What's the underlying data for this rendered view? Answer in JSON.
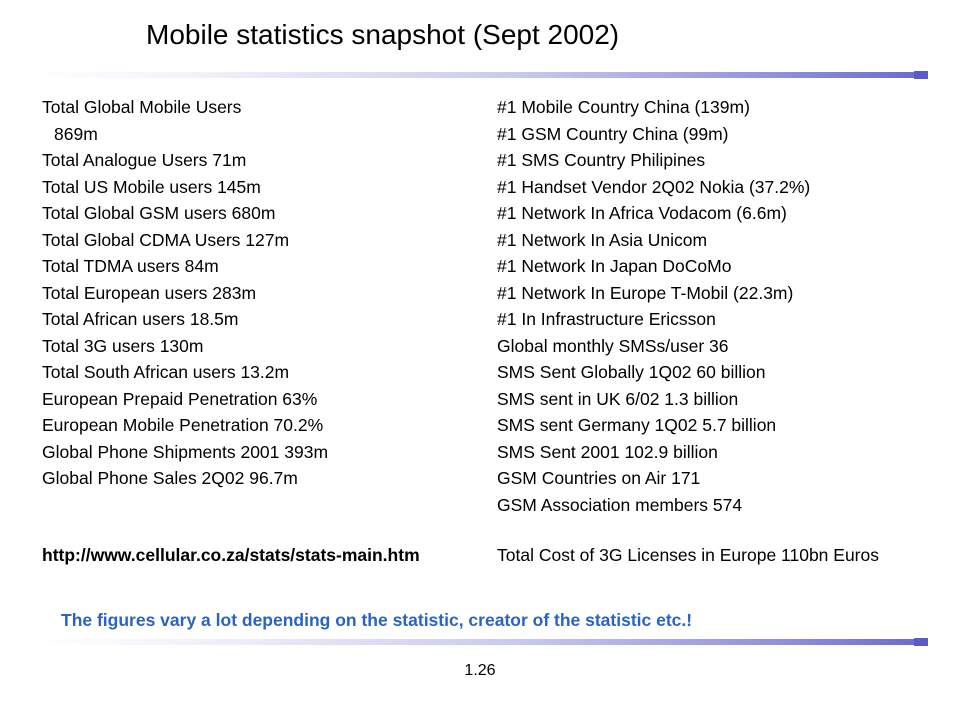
{
  "slide": {
    "title": "Mobile statistics snapshot (Sept 2002)",
    "left_column": [
      "Total Global Mobile Users",
      "869m",
      "Total Analogue Users  71m",
      "Total US Mobile users  145m",
      "Total Global GSM users  680m",
      "Total Global CDMA Users 127m",
      "Total TDMA users  84m",
      "Total European users  283m",
      "Total African users 18.5m",
      "Total 3G users 130m",
      "Total South African users 13.2m",
      "European Prepaid Penetration  63%",
      "European Mobile Penetration  70.2%",
      "Global Phone Shipments 2001  393m",
      "Global Phone Sales 2Q02 96.7m"
    ],
    "url": "http://www.cellular.co.za/stats/stats-main.htm",
    "right_column": [
      "#1 Mobile Country  China (139m)",
      "#1 GSM Country  China (99m)",
      "#1 SMS Country  Philipines",
      "#1 Handset Vendor 2Q02 Nokia (37.2%)",
      "#1 Network In Africa Vodacom (6.6m)",
      "#1 Network In Asia Unicom",
      "#1 Network In Japan DoCoMo",
      "#1 Network In Europe T-Mobil (22.3m)",
      "#1 In Infrastructure Ericsson",
      "Global monthly SMSs/user 36",
      "SMS Sent Globally 1Q02 60 billion",
      "SMS sent in UK 6/02 1.3 billion",
      "SMS sent Germany 1Q02 5.7 billion",
      "SMS Sent 2001 102.9 billion",
      "GSM Countries on Air 171",
      "GSM Association members 574"
    ],
    "right_last": "Total Cost of 3G Licenses in Europe 110bn Euros",
    "note": "The figures vary a lot depending on the statistic, creator of the statistic etc.!",
    "page_number": "1.26",
    "colors": {
      "note": "#2b63c4",
      "rule_accent": "#5a5ac8"
    }
  }
}
